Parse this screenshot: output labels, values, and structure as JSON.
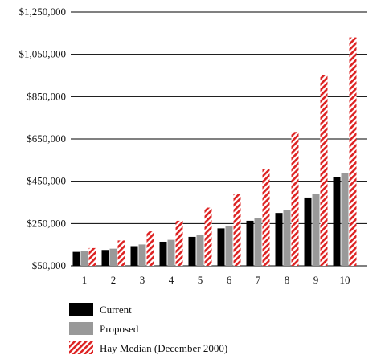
{
  "chart_data": {
    "type": "bar",
    "title": "",
    "xlabel": "",
    "ylabel": "",
    "categories": [
      "1",
      "2",
      "3",
      "4",
      "5",
      "6",
      "7",
      "8",
      "9",
      "10"
    ],
    "ylim": [
      50000,
      1250000
    ],
    "yticks": [
      50000,
      250000,
      450000,
      650000,
      850000,
      1050000,
      1250000
    ],
    "ytick_labels": [
      "$50,000",
      "$250,000",
      "$450,000",
      "$650,000",
      "$850,000",
      "$1,050,000",
      "$1,250,000"
    ],
    "grid": "horizontal",
    "legend_position": "bottom-left",
    "series": [
      {
        "name": "Current",
        "color": "#000000",
        "pattern": "solid",
        "values": [
          116000,
          125000,
          143000,
          164000,
          187000,
          227000,
          263000,
          300000,
          373000,
          468000
        ]
      },
      {
        "name": "Proposed",
        "color": "#999999",
        "pattern": "solid",
        "values": [
          120000,
          131000,
          151000,
          173000,
          196000,
          236000,
          276000,
          313000,
          390000,
          490000
        ]
      },
      {
        "name": "Hay Median (December 2000)",
        "color": "#dd2222",
        "pattern": "diagonal-hatch",
        "values": [
          134000,
          170000,
          213000,
          263000,
          325000,
          390000,
          507000,
          683000,
          950000,
          1130000
        ]
      }
    ]
  }
}
